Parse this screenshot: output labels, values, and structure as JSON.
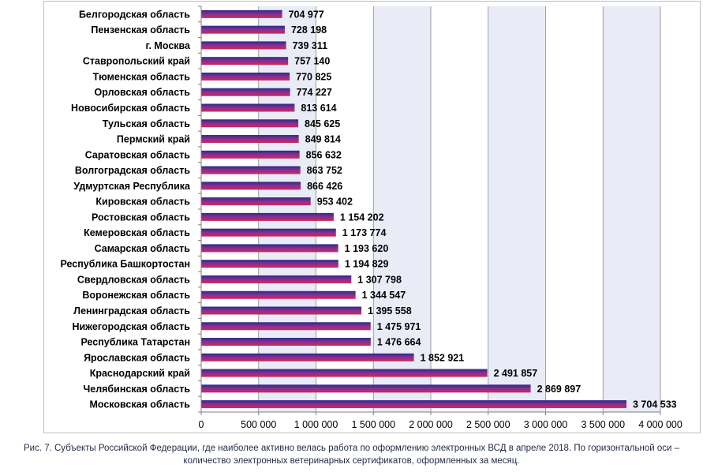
{
  "chart_data": {
    "type": "bar",
    "orientation": "horizontal",
    "categories": [
      "Белгородская область",
      "Пензенская область",
      "г. Москва",
      "Ставропольский край",
      "Тюменская область",
      "Орловская область",
      "Новосибирская область",
      "Тульская область",
      "Пермский край",
      "Саратовская область",
      "Волгоградская область",
      "Удмуртская Республика",
      "Кировская область",
      "Ростовская область",
      "Кемеровская область",
      "Самарская область",
      "Республика Башкортостан",
      "Свердловская область",
      "Воронежская область",
      "Ленинградская область",
      "Нижегородская область",
      "Республика Татарстан",
      "Ярославская область",
      "Краснодарский край",
      "Челябинская область",
      "Московская область"
    ],
    "values": [
      704977,
      728198,
      739311,
      757140,
      770825,
      774227,
      813614,
      845625,
      849814,
      856632,
      863752,
      866426,
      953402,
      1154202,
      1173774,
      1193620,
      1194829,
      1307798,
      1344547,
      1395558,
      1475971,
      1476664,
      1852921,
      2491857,
      2869897,
      3704533
    ],
    "value_labels": [
      "704 977",
      "728 198",
      "739 311",
      "757 140",
      "770 825",
      "774 227",
      "813 614",
      "845 625",
      "849 814",
      "856 632",
      "863 752",
      "866 426",
      "953 402",
      "1 154 202",
      "1 173 774",
      "1 193 620",
      "1 194 829",
      "1 307 798",
      "1 344 547",
      "1 395 558",
      "1 475 971",
      "1 476 664",
      "1 852 921",
      "2 491 857",
      "2 869 897",
      "3 704 533"
    ],
    "xlim": [
      0,
      4000000
    ],
    "x_ticks": [
      0,
      500000,
      1000000,
      1500000,
      2000000,
      2500000,
      3000000,
      3500000,
      4000000
    ],
    "x_tick_labels": [
      "0",
      "500 000",
      "1 000 000",
      "1 500 000",
      "2 000 000",
      "2 500 000",
      "3 000 000",
      "3 500 000",
      "4 000 000"
    ],
    "title": "",
    "xlabel": "",
    "ylabel": "",
    "grid": "vertical",
    "legend": "none",
    "colors": {
      "bar_gradient": [
        "#2b2a8c",
        "#8a2f8f",
        "#d0285e"
      ],
      "plot_background_alt": "#e9ecf6",
      "gridline": "#8a8a8a",
      "axis": "#7f7f7f",
      "label_text": "#000000"
    }
  },
  "caption": {
    "line1": "Рис. 7. Субъекты Российской Федерации, где наиболее активно велась работа по оформлению электронных ВСД в апреле 2018. По горизонтальной оси –",
    "line2": "количество электронных ветеринарных сертификатов, оформленных за месяц."
  }
}
